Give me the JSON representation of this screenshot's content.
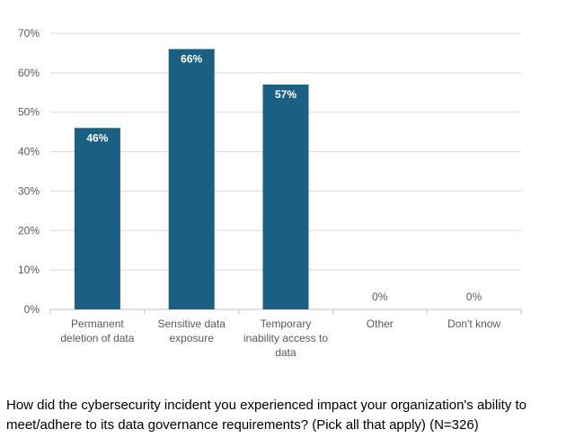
{
  "chart_data": {
    "type": "bar",
    "categories": [
      [
        "Permanent",
        "deletion of data"
      ],
      [
        "Sensitive data",
        "exposure"
      ],
      [
        "Temporary",
        "inability access to",
        "data"
      ],
      [
        "Other"
      ],
      [
        "Don't know"
      ]
    ],
    "values": [
      46,
      66,
      57,
      0,
      0
    ],
    "data_labels": [
      "46%",
      "66%",
      "57%",
      "0%",
      "0%"
    ],
    "yticks": [
      "0%",
      "10%",
      "20%",
      "30%",
      "40%",
      "50%",
      "60%",
      "70%"
    ],
    "ylim": [
      0,
      70
    ],
    "grid": true,
    "bar_color": "#1b5f82",
    "title": ""
  },
  "caption": "How did the cybersecurity incident you experienced impact your organization's ability to meet/adhere to its data governance requirements?  (Pick all that apply) (N=326)"
}
